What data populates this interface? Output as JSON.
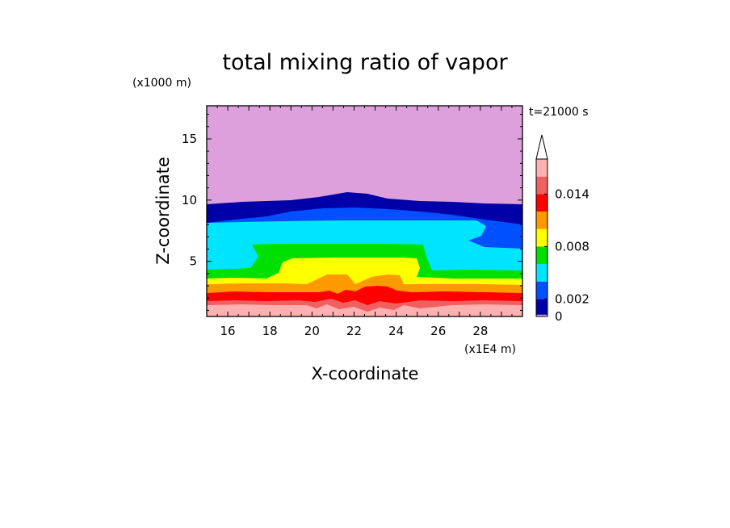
{
  "chart_data": {
    "type": "heatmap",
    "title": "total mixing ratio of vapor",
    "xlabel": "X-coordinate",
    "ylabel": "Z-coordinate",
    "x_unit": "(x1E4 m)",
    "y_unit": "(x1000 m)",
    "time_label": "t=21000 s",
    "xlim": [
      15,
      30
    ],
    "ylim": [
      0.5,
      17.7
    ],
    "x_ticks": [
      "16",
      "18",
      "20",
      "22",
      "24",
      "26",
      "28"
    ],
    "y_ticks": [
      "5",
      "10",
      "15"
    ],
    "colorbar": {
      "levels": [
        0,
        0.0002,
        0.002,
        0.004,
        0.006,
        0.008,
        0.01,
        0.012,
        0.014,
        0.016,
        0.018
      ],
      "tick_labels": [
        "0",
        "0.002",
        "0.008",
        "0.014"
      ],
      "colors": [
        "#dda0dd",
        "#0000a8",
        "#0050ff",
        "#00e5ff",
        "#00e000",
        "#ffff00",
        "#ff9900",
        "#ff0000",
        "#f06060",
        "#ffb0b0"
      ],
      "extend": "max"
    },
    "contour_bands": [
      {
        "range": "0-0.0002",
        "color": "#dda0dd",
        "z_top_approx": 17.7
      },
      {
        "range": "0.0002-0.002",
        "color": "#0000a8",
        "z_top_approx": 10.3
      },
      {
        "range": "0.002-0.004",
        "color": "#0050ff",
        "z_top_approx": 9.2
      },
      {
        "range": "0.004-0.006",
        "color": "#00e5ff",
        "z_top_approx": 8.0
      },
      {
        "range": "0.006-0.008",
        "color": "#00e000",
        "z_top_approx": 6.2
      },
      {
        "range": "0.008-0.010",
        "color": "#ffff00",
        "z_top_approx": 5.0
      },
      {
        "range": "0.010-0.012",
        "color": "#ff9900",
        "z_top_approx": 3.0
      },
      {
        "range": "0.012-0.014",
        "color": "#ff0000",
        "z_top_approx": 2.2
      },
      {
        "range": "0.014-0.016",
        "color": "#f06060",
        "z_top_approx": 1.6
      },
      {
        "range": "0.016-0.018",
        "color": "#ffb0b0",
        "z_top_approx": 1.0
      }
    ]
  }
}
